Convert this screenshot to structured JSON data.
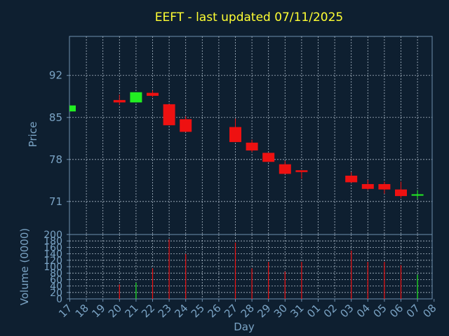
{
  "chart_data": {
    "type": "candlestick",
    "title": "EEFT - last updated 07/11/2025",
    "xlabel": "Day",
    "price_panel": {
      "ylabel": "Price",
      "yticks": [
        "71",
        "78",
        "85",
        "92"
      ],
      "ytick_values": [
        71,
        78,
        85,
        92
      ],
      "ylim": [
        65.5,
        98.5
      ],
      "grid": true
    },
    "volume_panel": {
      "ylabel": "Volume (0000)",
      "yticks": [
        "0",
        "20",
        "40",
        "60",
        "80",
        "100",
        "120",
        "140",
        "160",
        "180",
        "200"
      ],
      "ylim": [
        0,
        200
      ],
      "grid": true
    },
    "x_tick_labels": [
      "17",
      "18",
      "19",
      "20",
      "21",
      "22",
      "23",
      "24",
      "25",
      "26",
      "27",
      "28",
      "29",
      "30",
      "31",
      "01",
      "02",
      "03",
      "04",
      "05",
      "06",
      "07",
      "08"
    ],
    "candles": [
      {
        "day": "17",
        "open": 86.0,
        "close": 87.0,
        "high": 87.0,
        "low": 86.0,
        "volume": 0,
        "up": true
      },
      {
        "day": "20",
        "open": 87.9,
        "close": 87.5,
        "high": 88.8,
        "low": 87.1,
        "volume": 45,
        "up": false
      },
      {
        "day": "21",
        "open": 87.5,
        "close": 89.2,
        "high": 89.2,
        "low": 87.5,
        "volume": 50,
        "up": true
      },
      {
        "day": "22",
        "open": 89.1,
        "close": 88.6,
        "high": 89.5,
        "low": 88.4,
        "volume": 95,
        "up": false
      },
      {
        "day": "23",
        "open": 87.2,
        "close": 83.7,
        "high": 87.2,
        "low": 83.7,
        "volume": 185,
        "up": false
      },
      {
        "day": "24",
        "open": 84.7,
        "close": 82.6,
        "high": 85.2,
        "low": 82.6,
        "volume": 140,
        "up": false
      },
      {
        "day": "27",
        "open": 83.4,
        "close": 80.9,
        "high": 84.8,
        "low": 80.9,
        "volume": 175,
        "up": false
      },
      {
        "day": "28",
        "open": 80.8,
        "close": 79.5,
        "high": 81.3,
        "low": 79.2,
        "volume": 95,
        "up": false
      },
      {
        "day": "29",
        "open": 79.1,
        "close": 77.6,
        "high": 79.1,
        "low": 77.6,
        "volume": 115,
        "up": false
      },
      {
        "day": "30",
        "open": 77.2,
        "close": 75.6,
        "high": 77.8,
        "low": 75.6,
        "volume": 85,
        "up": false
      },
      {
        "day": "31",
        "open": 76.2,
        "close": 75.9,
        "high": 76.2,
        "low": 74.8,
        "volume": 115,
        "up": false
      },
      {
        "day": "03",
        "open": 75.3,
        "close": 74.2,
        "high": 75.9,
        "low": 74.1,
        "volume": 150,
        "up": false
      },
      {
        "day": "04",
        "open": 73.9,
        "close": 73.1,
        "high": 74.6,
        "low": 72.9,
        "volume": 115,
        "up": false
      },
      {
        "day": "05",
        "open": 73.9,
        "close": 73.0,
        "high": 74.3,
        "low": 72.3,
        "volume": 115,
        "up": false
      },
      {
        "day": "06",
        "open": 73.0,
        "close": 71.9,
        "high": 74.3,
        "low": 71.6,
        "volume": 105,
        "up": false
      },
      {
        "day": "07",
        "open": 72.0,
        "close": 72.2,
        "high": 72.9,
        "low": 71.4,
        "volume": 75,
        "up": true
      }
    ],
    "colors": {
      "background": "#0e1f30",
      "plot_border": "#6d8fae",
      "grid": "#c8d6e3",
      "text": "#7aa3c4",
      "title": "#ffff33",
      "up": "#22ee22",
      "down": "#ee1111"
    }
  }
}
